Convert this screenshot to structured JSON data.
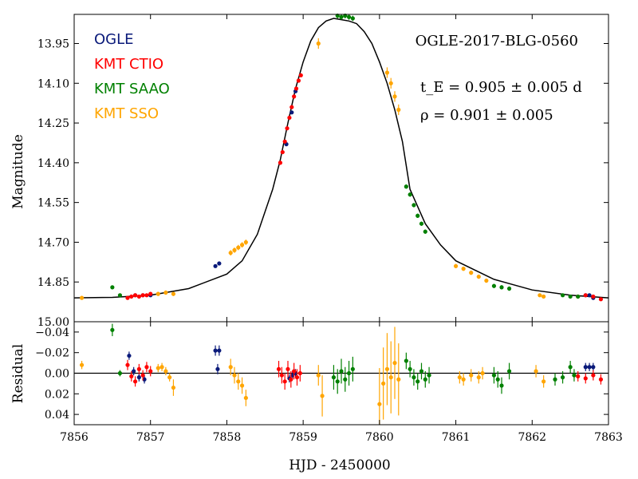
{
  "chart_data": {
    "type": "scatter",
    "title": "OGLE-2017-BLG-0560",
    "xlabel": "HJD - 2450000",
    "xlim": [
      7856,
      7863
    ],
    "x_ticks": [
      7856,
      7857,
      7858,
      7859,
      7860,
      7861,
      7862,
      7863
    ],
    "x_tick_labels": [
      "7856",
      "7857",
      "7858",
      "7859",
      "7860",
      "7861",
      "7862",
      "7863"
    ],
    "annotations": [
      {
        "id": "te",
        "text": "t_E = 0.905 ± 0.005 d"
      },
      {
        "id": "rho",
        "text": "ρ = 0.901 ± 0.005"
      }
    ],
    "legend": {
      "placement": "top-left",
      "entries": [
        {
          "name": "OGLE",
          "color": "#0a1a7a"
        },
        {
          "name": "KMT CTIO",
          "color": "#ff0000"
        },
        {
          "name": "KMT SAAO",
          "color": "#008000"
        },
        {
          "name": "KMT SSO",
          "color": "#ffa500"
        }
      ]
    },
    "panels": [
      {
        "id": "main",
        "ylabel": "Magnitude",
        "ylim": [
          15.0,
          13.84
        ],
        "y_inverted": true,
        "y_ticks": [
          13.95,
          14.1,
          14.25,
          14.4,
          14.55,
          14.7,
          14.85,
          15.0
        ],
        "y_tick_labels": [
          "13.95",
          "14.10",
          "14.25",
          "14.40",
          "14.55",
          "14.70",
          "14.85",
          "15.00"
        ],
        "model_curve": {
          "color": "#000000",
          "x": [
            7856.0,
            7856.5,
            7857.0,
            7857.5,
            7858.0,
            7858.2,
            7858.4,
            7858.6,
            7858.7,
            7858.8,
            7858.9,
            7859.0,
            7859.1,
            7859.2,
            7859.3,
            7859.4,
            7859.5,
            7859.6,
            7859.7,
            7859.8,
            7859.9,
            7860.0,
            7860.1,
            7860.2,
            7860.3,
            7860.4,
            7860.6,
            7860.8,
            7861.0,
            7861.5,
            7862.0,
            7862.5,
            7863.0
          ],
          "y": [
            14.91,
            14.908,
            14.9,
            14.875,
            14.82,
            14.77,
            14.67,
            14.5,
            14.39,
            14.25,
            14.12,
            14.02,
            13.94,
            13.89,
            13.865,
            13.855,
            13.86,
            13.865,
            13.875,
            13.905,
            13.95,
            14.02,
            14.1,
            14.2,
            14.32,
            14.5,
            14.63,
            14.71,
            14.77,
            14.84,
            14.88,
            14.9,
            14.91
          ]
        },
        "series": [
          {
            "name": "OGLE",
            "color": "#0a1a7a",
            "x": [
              7856.8,
              7856.9,
              7857.0,
              7857.85,
              7857.9,
              7858.78,
              7858.85,
              7858.9,
              7862.7,
              7862.75,
              7862.8
            ],
            "y": [
              14.9,
              14.9,
              14.9,
              14.79,
              14.78,
              14.33,
              14.21,
              14.13,
              14.9,
              14.9,
              14.91
            ],
            "err": [
              0.004,
              0.004,
              0.004,
              0.005,
              0.005,
              0.004,
              0.004,
              0.004,
              0.004,
              0.004,
              0.004
            ]
          },
          {
            "name": "KMT CTIO",
            "color": "#ff0000",
            "x": [
              7856.7,
              7856.75,
              7856.8,
              7856.85,
              7856.9,
              7856.95,
              7857.0,
              7858.7,
              7858.73,
              7858.76,
              7858.79,
              7858.82,
              7858.85,
              7858.88,
              7858.91,
              7858.94,
              7858.97,
              7862.6,
              7862.7,
              7862.8,
              7862.9
            ],
            "y": [
              14.91,
              14.905,
              14.9,
              14.905,
              14.9,
              14.9,
              14.895,
              14.4,
              14.36,
              14.32,
              14.27,
              14.23,
              14.19,
              14.15,
              14.12,
              14.09,
              14.07,
              14.905,
              14.9,
              14.905,
              14.915
            ],
            "err": [
              0.005,
              0.005,
              0.005,
              0.005,
              0.005,
              0.005,
              0.005,
              0.006,
              0.006,
              0.006,
              0.006,
              0.006,
              0.006,
              0.006,
              0.006,
              0.006,
              0.006,
              0.005,
              0.005,
              0.005,
              0.005
            ]
          },
          {
            "name": "KMT SAAO",
            "color": "#008000",
            "x": [
              7856.5,
              7856.6,
              7859.45,
              7859.5,
              7859.55,
              7859.6,
              7859.65,
              7860.35,
              7860.4,
              7860.45,
              7860.5,
              7860.55,
              7860.6,
              7861.5,
              7861.6,
              7861.7,
              7862.4,
              7862.5,
              7862.6
            ],
            "y": [
              14.87,
              14.9,
              13.845,
              13.85,
              13.845,
              13.85,
              13.855,
              14.49,
              14.52,
              14.56,
              14.6,
              14.63,
              14.66,
              14.865,
              14.87,
              14.875,
              14.9,
              14.905,
              14.905
            ],
            "err": [
              0.006,
              0.006,
              0.01,
              0.01,
              0.01,
              0.01,
              0.01,
              0.008,
              0.008,
              0.008,
              0.008,
              0.008,
              0.008,
              0.008,
              0.008,
              0.008,
              0.006,
              0.006,
              0.006
            ]
          },
          {
            "name": "KMT SSO",
            "color": "#ffa500",
            "x": [
              7856.1,
              7857.1,
              7857.2,
              7857.3,
              7858.05,
              7858.1,
              7858.15,
              7858.2,
              7858.25,
              7859.2,
              7860.1,
              7860.15,
              7860.2,
              7860.25,
              7861.0,
              7861.1,
              7861.2,
              7861.3,
              7861.4,
              7862.1,
              7862.15
            ],
            "y": [
              14.91,
              14.895,
              14.89,
              14.895,
              14.74,
              14.73,
              14.72,
              14.71,
              14.7,
              13.95,
              14.06,
              14.1,
              14.15,
              14.2,
              14.79,
              14.8,
              14.815,
              14.83,
              14.845,
              14.9,
              14.905
            ],
            "err": [
              0.006,
              0.008,
              0.008,
              0.008,
              0.01,
              0.01,
              0.01,
              0.01,
              0.01,
              0.02,
              0.02,
              0.02,
              0.02,
              0.02,
              0.008,
              0.008,
              0.008,
              0.008,
              0.008,
              0.006,
              0.006
            ]
          }
        ]
      },
      {
        "id": "residual",
        "ylabel": "Residual",
        "ylim": [
          0.05,
          -0.05
        ],
        "y_inverted": true,
        "y_ticks": [
          -0.04,
          -0.02,
          0.0,
          0.02,
          0.04
        ],
        "y_tick_labels": [
          "−0.04",
          "−0.02",
          "0.00",
          "0.02",
          "0.04"
        ],
        "zero_line": true,
        "series": [
          {
            "name": "OGLE",
            "color": "#0a1a7a",
            "x": [
              7856.72,
              7856.78,
              7856.85,
              7856.92,
              7857.85,
              7857.9,
              7857.88,
              7858.82,
              7858.86,
              7858.9,
              7862.7,
              7862.75,
              7862.8
            ],
            "y": [
              -0.017,
              -0.002,
              0.004,
              0.006,
              -0.022,
              -0.022,
              -0.004,
              0.005,
              0.002,
              0.0,
              -0.006,
              -0.006,
              -0.006
            ],
            "err": [
              0.004,
              0.004,
              0.004,
              0.004,
              0.005,
              0.005,
              0.005,
              0.004,
              0.004,
              0.004,
              0.004,
              0.004,
              0.004
            ]
          },
          {
            "name": "KMT CTIO",
            "color": "#ff0000",
            "x": [
              7856.7,
              7856.75,
              7856.8,
              7856.85,
              7856.9,
              7856.95,
              7857.0,
              7858.68,
              7858.72,
              7858.76,
              7858.8,
              7858.84,
              7858.88,
              7858.92,
              7858.96,
              7862.6,
              7862.7,
              7862.8,
              7862.9
            ],
            "y": [
              -0.008,
              0.003,
              0.008,
              -0.004,
              0.002,
              -0.006,
              -0.002,
              -0.004,
              0.002,
              0.008,
              -0.004,
              0.006,
              -0.002,
              0.004,
              0.0,
              0.003,
              0.005,
              0.002,
              0.006
            ],
            "err": [
              0.005,
              0.005,
              0.005,
              0.005,
              0.005,
              0.005,
              0.005,
              0.008,
              0.008,
              0.008,
              0.008,
              0.008,
              0.008,
              0.008,
              0.008,
              0.005,
              0.005,
              0.005,
              0.005
            ]
          },
          {
            "name": "KMT SAAO",
            "color": "#008000",
            "x": [
              7856.5,
              7856.6,
              7859.4,
              7859.45,
              7859.5,
              7859.55,
              7859.6,
              7859.65,
              7860.35,
              7860.4,
              7860.45,
              7860.5,
              7860.55,
              7860.6,
              7860.65,
              7861.5,
              7861.55,
              7861.6,
              7861.7,
              7862.3,
              7862.4,
              7862.5,
              7862.55
            ],
            "y": [
              -0.042,
              0.0,
              0.004,
              0.008,
              -0.002,
              0.006,
              0.0,
              -0.004,
              -0.012,
              -0.004,
              0.004,
              0.008,
              -0.002,
              0.006,
              0.002,
              0.002,
              0.006,
              0.012,
              -0.002,
              0.006,
              0.004,
              -0.006,
              0.002
            ],
            "err": [
              0.006,
              0.003,
              0.012,
              0.012,
              0.012,
              0.012,
              0.012,
              0.012,
              0.008,
              0.008,
              0.008,
              0.008,
              0.008,
              0.008,
              0.008,
              0.008,
              0.008,
              0.008,
              0.008,
              0.006,
              0.006,
              0.006,
              0.006
            ]
          },
          {
            "name": "KMT SSO",
            "color": "#ffa500",
            "x": [
              7856.1,
              7857.1,
              7857.15,
              7857.2,
              7857.25,
              7857.3,
              7858.05,
              7858.1,
              7858.15,
              7858.2,
              7858.25,
              7859.2,
              7859.25,
              7860.0,
              7860.05,
              7860.1,
              7860.15,
              7860.2,
              7860.25,
              7861.05,
              7861.1,
              7861.2,
              7861.3,
              7861.35,
              7862.05,
              7862.15
            ],
            "y": [
              -0.008,
              -0.005,
              -0.006,
              -0.002,
              0.004,
              0.014,
              -0.006,
              0.002,
              0.008,
              0.012,
              0.024,
              0.002,
              0.022,
              0.03,
              0.01,
              -0.004,
              0.004,
              -0.01,
              0.006,
              0.004,
              0.006,
              0.002,
              0.004,
              0.0,
              -0.002,
              0.008
            ],
            "err": [
              0.004,
              0.004,
              0.004,
              0.004,
              0.004,
              0.008,
              0.008,
              0.008,
              0.008,
              0.008,
              0.008,
              0.01,
              0.02,
              0.035,
              0.035,
              0.035,
              0.035,
              0.035,
              0.035,
              0.006,
              0.006,
              0.006,
              0.006,
              0.006,
              0.006,
              0.006
            ]
          }
        ]
      }
    ]
  }
}
